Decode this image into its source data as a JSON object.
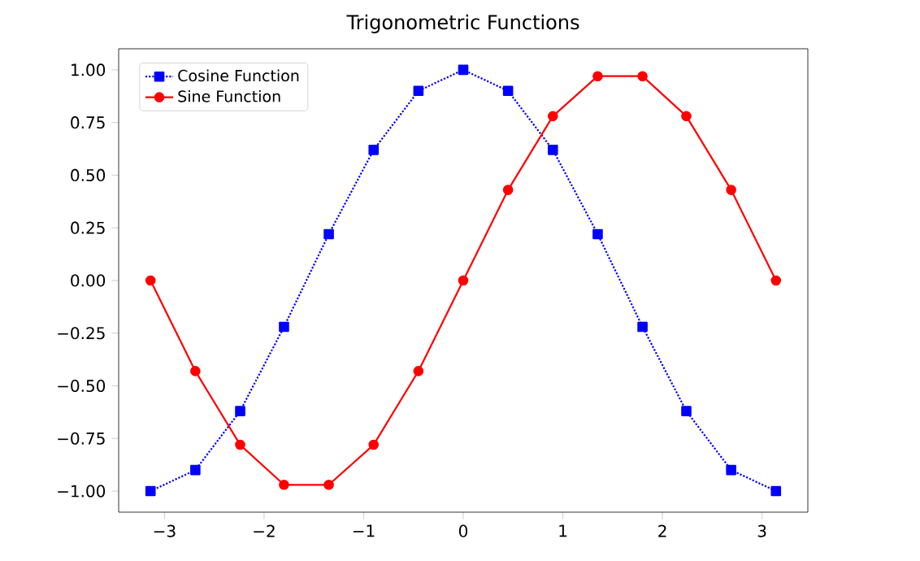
{
  "chart_data": {
    "type": "line",
    "title": "Trigonometric Functions",
    "x": [
      -3.14,
      -2.69,
      -2.24,
      -1.8,
      -1.35,
      -0.9,
      -0.45,
      0,
      0.45,
      0.9,
      1.35,
      1.8,
      2.24,
      2.69,
      3.14
    ],
    "series": [
      {
        "name": "Cosine Function",
        "color": "#0000ff",
        "marker": "square",
        "line_style": "dotted",
        "values": [
          -1,
          -0.9,
          -0.62,
          -0.22,
          0.22,
          0.62,
          0.9,
          1,
          0.9,
          0.62,
          0.22,
          -0.22,
          -0.62,
          -0.9,
          -1
        ]
      },
      {
        "name": "Sine Function",
        "color": "#ff0000",
        "marker": "circle",
        "line_style": "solid",
        "values": [
          0,
          -0.43,
          -0.78,
          -0.97,
          -0.97,
          -0.78,
          -0.43,
          0,
          0.43,
          0.78,
          0.97,
          0.97,
          0.78,
          0.43,
          0
        ]
      }
    ],
    "xlim": [
      -3.46,
      3.46
    ],
    "ylim": [
      -1.1,
      1.1
    ],
    "xticks": [
      {
        "value": -3,
        "label": "−3"
      },
      {
        "value": -2,
        "label": "−2"
      },
      {
        "value": -1,
        "label": "−1"
      },
      0,
      1,
      2,
      3
    ],
    "yticks": [
      {
        "value": -1,
        "label": "−1.00"
      },
      {
        "value": -0.75,
        "label": "−0.75"
      },
      {
        "value": -0.5,
        "label": "−0.50"
      },
      {
        "value": -0.25,
        "label": "−0.25"
      },
      {
        "value": 0,
        "label": "0.00"
      },
      {
        "value": 0.25,
        "label": "0.25"
      },
      {
        "value": 0.5,
        "label": "0.50"
      },
      {
        "value": 0.75,
        "label": "0.75"
      },
      {
        "value": 1,
        "label": "1.00"
      }
    ],
    "legend": "top left"
  }
}
